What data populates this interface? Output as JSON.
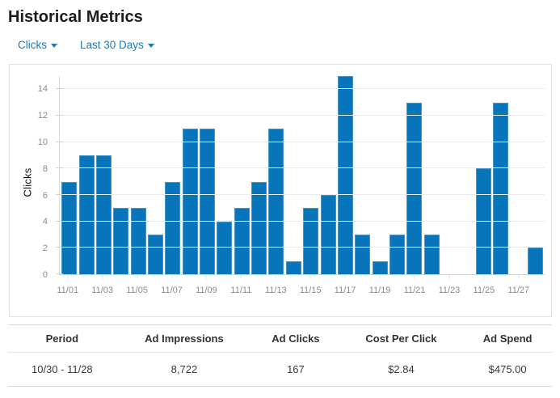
{
  "page": {
    "title": "Historical Metrics"
  },
  "filters": {
    "metric": {
      "label": "Clicks"
    },
    "range": {
      "label": "Last 30 Days"
    }
  },
  "colors": {
    "link_blue": "#1779ba",
    "bar_fill": "#0874b9",
    "bar_stroke": "#4a94c8",
    "gridline": "#e9edf3"
  },
  "chart_data": {
    "type": "bar",
    "title": "",
    "xlabel": "",
    "ylabel": "Clicks",
    "ylim": [
      0,
      15
    ],
    "yticks": [
      0,
      2,
      4,
      6,
      8,
      10,
      12,
      14
    ],
    "grid": true,
    "legend": "none",
    "categories": [
      "11/01",
      "11/02",
      "11/03",
      "11/04",
      "11/05",
      "11/06",
      "11/07",
      "11/08",
      "11/09",
      "11/10",
      "11/11",
      "11/12",
      "11/13",
      "11/14",
      "11/15",
      "11/16",
      "11/17",
      "11/18",
      "11/19",
      "11/20",
      "11/21",
      "11/22",
      "11/23",
      "11/24",
      "11/25",
      "11/26",
      "11/27",
      "11/28"
    ],
    "values": [
      7,
      9,
      9,
      5,
      5,
      3,
      7,
      11,
      11,
      4,
      5,
      7,
      11,
      1,
      5,
      6,
      15,
      3,
      1,
      3,
      13,
      3,
      0,
      0,
      8,
      13,
      0,
      2
    ],
    "x_tick_labels": [
      "11/01",
      "11/03",
      "11/05",
      "11/07",
      "11/09",
      "11/11",
      "11/13",
      "11/15",
      "11/17",
      "11/19",
      "11/21",
      "11/23",
      "11/25",
      "11/27"
    ]
  },
  "table": {
    "columns": [
      "Period",
      "Ad Impressions",
      "Ad Clicks",
      "Cost Per Click",
      "Ad Spend"
    ],
    "rows": [
      [
        "10/30 - 11/28",
        "8,722",
        "167",
        "$2.84",
        "$475.00"
      ]
    ]
  }
}
